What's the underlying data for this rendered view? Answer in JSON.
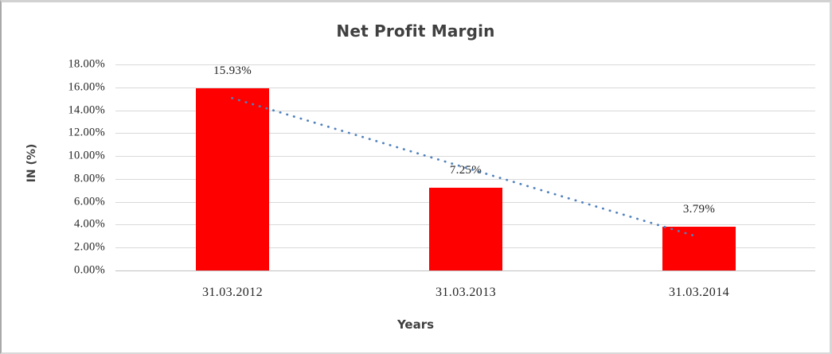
{
  "chart_data": {
    "type": "bar",
    "title": "Net Profit Margin",
    "xlabel": "Years",
    "ylabel": "IN (%)",
    "categories": [
      "31.03.2012",
      "31.03.2013",
      "31.03.2014"
    ],
    "values": [
      15.93,
      7.25,
      3.79
    ],
    "data_labels": [
      "15.93%",
      "7.25%",
      "3.79%"
    ],
    "ylim": [
      0,
      18
    ],
    "ytick_step": 2,
    "ytick_labels": [
      "0.00%",
      "2.00%",
      "4.00%",
      "6.00%",
      "8.00%",
      "10.00%",
      "12.00%",
      "14.00%",
      "16.00%",
      "18.00%"
    ],
    "grid": true,
    "legend": "none",
    "bar_color": "#ff0000",
    "title_color": "#404040",
    "gridline_color": "#d9d9d9",
    "axis_line_color": "#bfbfbf",
    "trendline": {
      "type": "linear",
      "style": "dotted",
      "color": "#4f81bd",
      "start_category_index": 0,
      "start_value": 15.06,
      "end_category_index": 2,
      "end_value": 2.92
    }
  }
}
